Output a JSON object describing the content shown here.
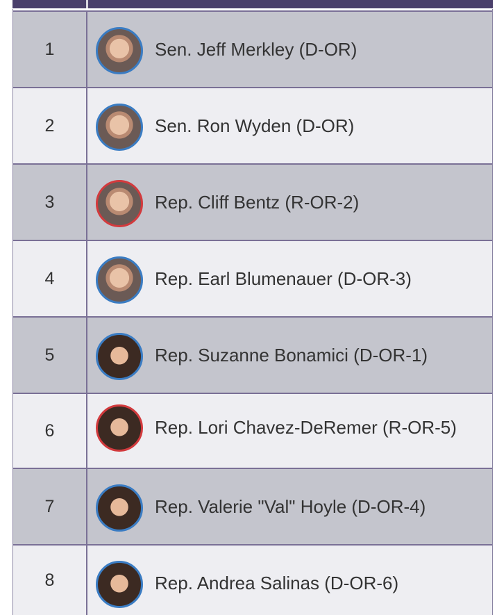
{
  "rows": [
    {
      "rank": 1,
      "name": "Sen. Jeff Merkley (D-OR)"
    },
    {
      "rank": 2,
      "name": "Sen. Ron Wyden (D-OR)"
    },
    {
      "rank": 3,
      "name": "Rep. Cliff Bentz (R-OR-2)"
    },
    {
      "rank": 4,
      "name": "Rep. Earl Blumenauer (D-OR-3)"
    },
    {
      "rank": 5,
      "name": "Rep. Suzanne Bonamici (D-OR-1)"
    },
    {
      "rank": 6,
      "name": "Rep. Lori Chavez-DeRemer (R-OR-5)"
    },
    {
      "rank": 7,
      "name": "Rep. Valerie \"Val\" Hoyle (D-OR-4)"
    },
    {
      "rank": 8,
      "name": "Rep. Andrea Salinas (D-OR-6)"
    }
  ]
}
